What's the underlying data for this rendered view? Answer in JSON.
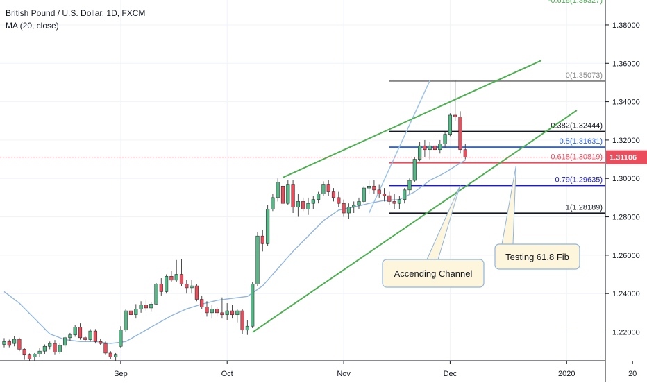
{
  "header": {
    "title": "British Pound / U.S. Dollar, 1D, FXCM",
    "indicator": "MA (20, close)"
  },
  "colors": {
    "up": "#53b987",
    "down": "#eb4d5c",
    "wick": "#4a4a4a",
    "ma": "#8fb5e0",
    "channel": "#4caf50",
    "price_tag": "#eb4d5c",
    "grid": "#f0f3fa"
  },
  "chart_data": {
    "type": "candlestick",
    "title": "British Pound / U.S. Dollar, 1D, FXCM",
    "ylim": [
      1.205,
      1.393
    ],
    "y_ticks": [
      "1.38000",
      "1.36000",
      "1.34000",
      "1.32000",
      "1.30000",
      "1.28000",
      "1.26000",
      "1.24000",
      "1.22000"
    ],
    "y_tick_values": [
      1.38,
      1.36,
      1.34,
      1.32,
      1.3,
      1.28,
      1.26,
      1.24,
      1.22
    ],
    "x_ticks": [
      {
        "label": "Sep",
        "day": 23
      },
      {
        "label": "Oct",
        "day": 44
      },
      {
        "label": "Nov",
        "day": 67
      },
      {
        "label": "Dec",
        "day": 88
      },
      {
        "label": "2020",
        "day": 111
      },
      {
        "label": "20",
        "day": 124
      }
    ],
    "last_price": "1.31106",
    "last_price_value": 1.31106,
    "top_label": "-0.618(1.39327)",
    "fib_levels": [
      {
        "label": "0(1.35073)",
        "value": 1.35073,
        "color": "#888888"
      },
      {
        "label": "0.382(1.32444)",
        "value": 1.32444,
        "color": "#131722"
      },
      {
        "label": "0.5(1.31631)",
        "value": 1.31631,
        "color": "#2962ff"
      },
      {
        "label": "0.618(1.30819)",
        "value": 1.30819,
        "color": "#eb4d5c"
      },
      {
        "label": "0.79(1.29635)",
        "value": 1.29635,
        "color": "#1a1acc"
      },
      {
        "label": "1(1.28189)",
        "value": 1.28189,
        "color": "#131722"
      }
    ],
    "fib_range_days": [
      76,
      124
    ],
    "channel_lines": [
      {
        "from": {
          "day": 49,
          "price": 1.2198
        },
        "to": {
          "day": 113,
          "price": 1.3355
        }
      },
      {
        "from": {
          "day": 55,
          "price": 1.3005
        },
        "to": {
          "day": 106,
          "price": 1.3615
        }
      }
    ],
    "annotations": [
      {
        "text": "Accending Channel",
        "point": {
          "day": 90,
          "price": 1.2965
        }
      },
      {
        "text": "Testing 61.8 Fib",
        "point": {
          "day": 101,
          "price": 1.3065
        }
      }
    ],
    "ohlc": [
      [
        0,
        1.2135,
        1.2168,
        1.212,
        1.215
      ],
      [
        1,
        1.215,
        1.216,
        1.212,
        1.213
      ],
      [
        2,
        1.214,
        1.2178,
        1.2125,
        1.2162
      ],
      [
        3,
        1.2162,
        1.217,
        1.21,
        1.211
      ],
      [
        4,
        1.211,
        1.2118,
        1.2055,
        1.208
      ],
      [
        5,
        1.208,
        1.2088,
        1.205,
        1.206
      ],
      [
        6,
        1.207,
        1.209,
        1.205,
        1.2085
      ],
      [
        7,
        1.2085,
        1.2115,
        1.207,
        1.21
      ],
      [
        8,
        1.21,
        1.2135,
        1.2085,
        1.2125
      ],
      [
        9,
        1.2125,
        1.215,
        1.211,
        1.214
      ],
      [
        10,
        1.214,
        1.2158,
        1.208,
        1.2095
      ],
      [
        11,
        1.2095,
        1.214,
        1.2085,
        1.213
      ],
      [
        12,
        1.213,
        1.218,
        1.212,
        1.217
      ],
      [
        13,
        1.217,
        1.2195,
        1.2155,
        1.2185
      ],
      [
        14,
        1.2185,
        1.2235,
        1.2175,
        1.2225
      ],
      [
        15,
        1.2225,
        1.2245,
        1.216,
        1.217
      ],
      [
        16,
        1.217,
        1.218,
        1.215,
        1.216
      ],
      [
        17,
        1.216,
        1.2215,
        1.215,
        1.2205
      ],
      [
        18,
        1.2205,
        1.2215,
        1.214,
        1.215
      ],
      [
        19,
        1.215,
        1.2165,
        1.213,
        1.214
      ],
      [
        20,
        1.214,
        1.215,
        1.208,
        1.209
      ],
      [
        21,
        1.209,
        1.21,
        1.206,
        1.207
      ],
      [
        22,
        1.207,
        1.209,
        1.205,
        1.208
      ],
      [
        23,
        1.2125,
        1.223,
        1.2115,
        1.221
      ],
      [
        24,
        1.221,
        1.232,
        1.22,
        1.231
      ],
      [
        25,
        1.231,
        1.233,
        1.226,
        1.229
      ],
      [
        26,
        1.229,
        1.2345,
        1.227,
        1.232
      ],
      [
        27,
        1.232,
        1.236,
        1.23,
        1.234
      ],
      [
        28,
        1.234,
        1.237,
        1.231,
        1.2325
      ],
      [
        29,
        1.2325,
        1.2355,
        1.2305,
        1.2345
      ],
      [
        30,
        1.2345,
        1.2455,
        1.234,
        1.245
      ],
      [
        31,
        1.245,
        1.248,
        1.239,
        1.241
      ],
      [
        32,
        1.241,
        1.25,
        1.24,
        1.249
      ],
      [
        33,
        1.249,
        1.252,
        1.246,
        1.247
      ],
      [
        34,
        1.247,
        1.2575,
        1.246,
        1.25
      ],
      [
        35,
        1.25,
        1.258,
        1.244,
        1.245
      ],
      [
        36,
        1.245,
        1.247,
        1.24,
        1.243
      ],
      [
        37,
        1.243,
        1.247,
        1.24,
        1.244
      ],
      [
        38,
        1.244,
        1.245,
        1.236,
        1.237
      ],
      [
        39,
        1.237,
        1.239,
        1.232,
        1.233
      ],
      [
        40,
        1.233,
        1.236,
        1.228,
        1.23
      ],
      [
        41,
        1.23,
        1.234,
        1.227,
        1.232
      ],
      [
        42,
        1.232,
        1.233,
        1.228,
        1.23
      ],
      [
        43,
        1.23,
        1.238,
        1.227,
        1.229
      ],
      [
        44,
        1.229,
        1.235,
        1.226,
        1.231
      ],
      [
        45,
        1.231,
        1.234,
        1.227,
        1.229
      ],
      [
        46,
        1.229,
        1.232,
        1.225,
        1.231
      ],
      [
        47,
        1.231,
        1.232,
        1.219,
        1.221
      ],
      [
        48,
        1.221,
        1.226,
        1.2185,
        1.223
      ],
      [
        49,
        1.223,
        1.246,
        1.222,
        1.245
      ],
      [
        50,
        1.245,
        1.272,
        1.244,
        1.27
      ],
      [
        51,
        1.27,
        1.273,
        1.262,
        1.266
      ],
      [
        52,
        1.266,
        1.286,
        1.265,
        1.284
      ],
      [
        53,
        1.284,
        1.292,
        1.283,
        1.29
      ],
      [
        54,
        1.29,
        1.3,
        1.288,
        1.298
      ],
      [
        55,
        1.296,
        1.301,
        1.285,
        1.287
      ],
      [
        56,
        1.287,
        1.299,
        1.286,
        1.297
      ],
      [
        57,
        1.297,
        1.299,
        1.282,
        1.285
      ],
      [
        58,
        1.285,
        1.292,
        1.28,
        1.288
      ],
      [
        59,
        1.288,
        1.29,
        1.283,
        1.284
      ],
      [
        60,
        1.284,
        1.29,
        1.281,
        1.287
      ],
      [
        61,
        1.287,
        1.291,
        1.284,
        1.289
      ],
      [
        62,
        1.289,
        1.293,
        1.287,
        1.292
      ],
      [
        63,
        1.292,
        1.2985,
        1.291,
        1.297
      ],
      [
        64,
        1.297,
        1.299,
        1.291,
        1.293
      ],
      [
        65,
        1.293,
        1.295,
        1.288,
        1.29
      ],
      [
        66,
        1.29,
        1.293,
        1.285,
        1.287
      ],
      [
        67,
        1.287,
        1.289,
        1.28,
        1.282
      ],
      [
        68,
        1.282,
        1.287,
        1.279,
        1.285
      ],
      [
        69,
        1.285,
        1.288,
        1.282,
        1.286
      ],
      [
        70,
        1.286,
        1.29,
        1.284,
        1.288
      ],
      [
        71,
        1.288,
        1.296,
        1.287,
        1.295
      ],
      [
        72,
        1.295,
        1.299,
        1.292,
        1.296
      ],
      [
        73,
        1.296,
        1.299,
        1.292,
        1.294
      ],
      [
        74,
        1.294,
        1.297,
        1.29,
        1.292
      ],
      [
        75,
        1.292,
        1.295,
        1.288,
        1.291
      ],
      [
        76,
        1.291,
        1.293,
        1.286,
        1.288
      ],
      [
        77,
        1.288,
        1.292,
        1.284,
        1.287
      ],
      [
        78,
        1.287,
        1.291,
        1.284,
        1.289
      ],
      [
        79,
        1.289,
        1.295,
        1.287,
        1.294
      ],
      [
        80,
        1.294,
        1.3,
        1.292,
        1.299
      ],
      [
        81,
        1.299,
        1.311,
        1.298,
        1.31
      ],
      [
        82,
        1.31,
        1.319,
        1.309,
        1.317
      ],
      [
        83,
        1.317,
        1.32,
        1.311,
        1.315
      ],
      [
        84,
        1.315,
        1.319,
        1.31,
        1.317
      ],
      [
        85,
        1.317,
        1.322,
        1.313,
        1.315
      ],
      [
        86,
        1.315,
        1.32,
        1.313,
        1.318
      ],
      [
        87,
        1.318,
        1.324,
        1.316,
        1.323
      ],
      [
        88,
        1.323,
        1.334,
        1.322,
        1.333
      ],
      [
        89,
        1.333,
        1.351,
        1.33,
        1.332
      ],
      [
        90,
        1.332,
        1.335,
        1.313,
        1.315
      ],
      [
        91,
        1.315,
        1.318,
        1.31,
        1.3111
      ]
    ],
    "ma_20": [
      [
        0,
        1.241
      ],
      [
        3,
        1.235
      ],
      [
        6,
        1.227
      ],
      [
        9,
        1.219
      ],
      [
        12,
        1.216
      ],
      [
        15,
        1.215
      ],
      [
        18,
        1.215
      ],
      [
        21,
        1.214
      ],
      [
        24,
        1.215
      ],
      [
        27,
        1.2195
      ],
      [
        30,
        1.224
      ],
      [
        33,
        1.2285
      ],
      [
        36,
        1.232
      ],
      [
        39,
        1.2345
      ],
      [
        42,
        1.2365
      ],
      [
        45,
        1.2375
      ],
      [
        48,
        1.2385
      ],
      [
        51,
        1.244
      ],
      [
        54,
        1.253
      ],
      [
        57,
        1.262
      ],
      [
        60,
        1.27
      ],
      [
        63,
        1.278
      ],
      [
        66,
        1.2835
      ],
      [
        69,
        1.285
      ],
      [
        72,
        1.287
      ],
      [
        75,
        1.2885
      ],
      [
        78,
        1.289
      ],
      [
        81,
        1.293
      ],
      [
        84,
        1.299
      ],
      [
        87,
        1.303
      ],
      [
        90,
        1.308
      ],
      [
        91,
        1.3095
      ]
    ],
    "day_range": [
      0,
      128
    ]
  }
}
